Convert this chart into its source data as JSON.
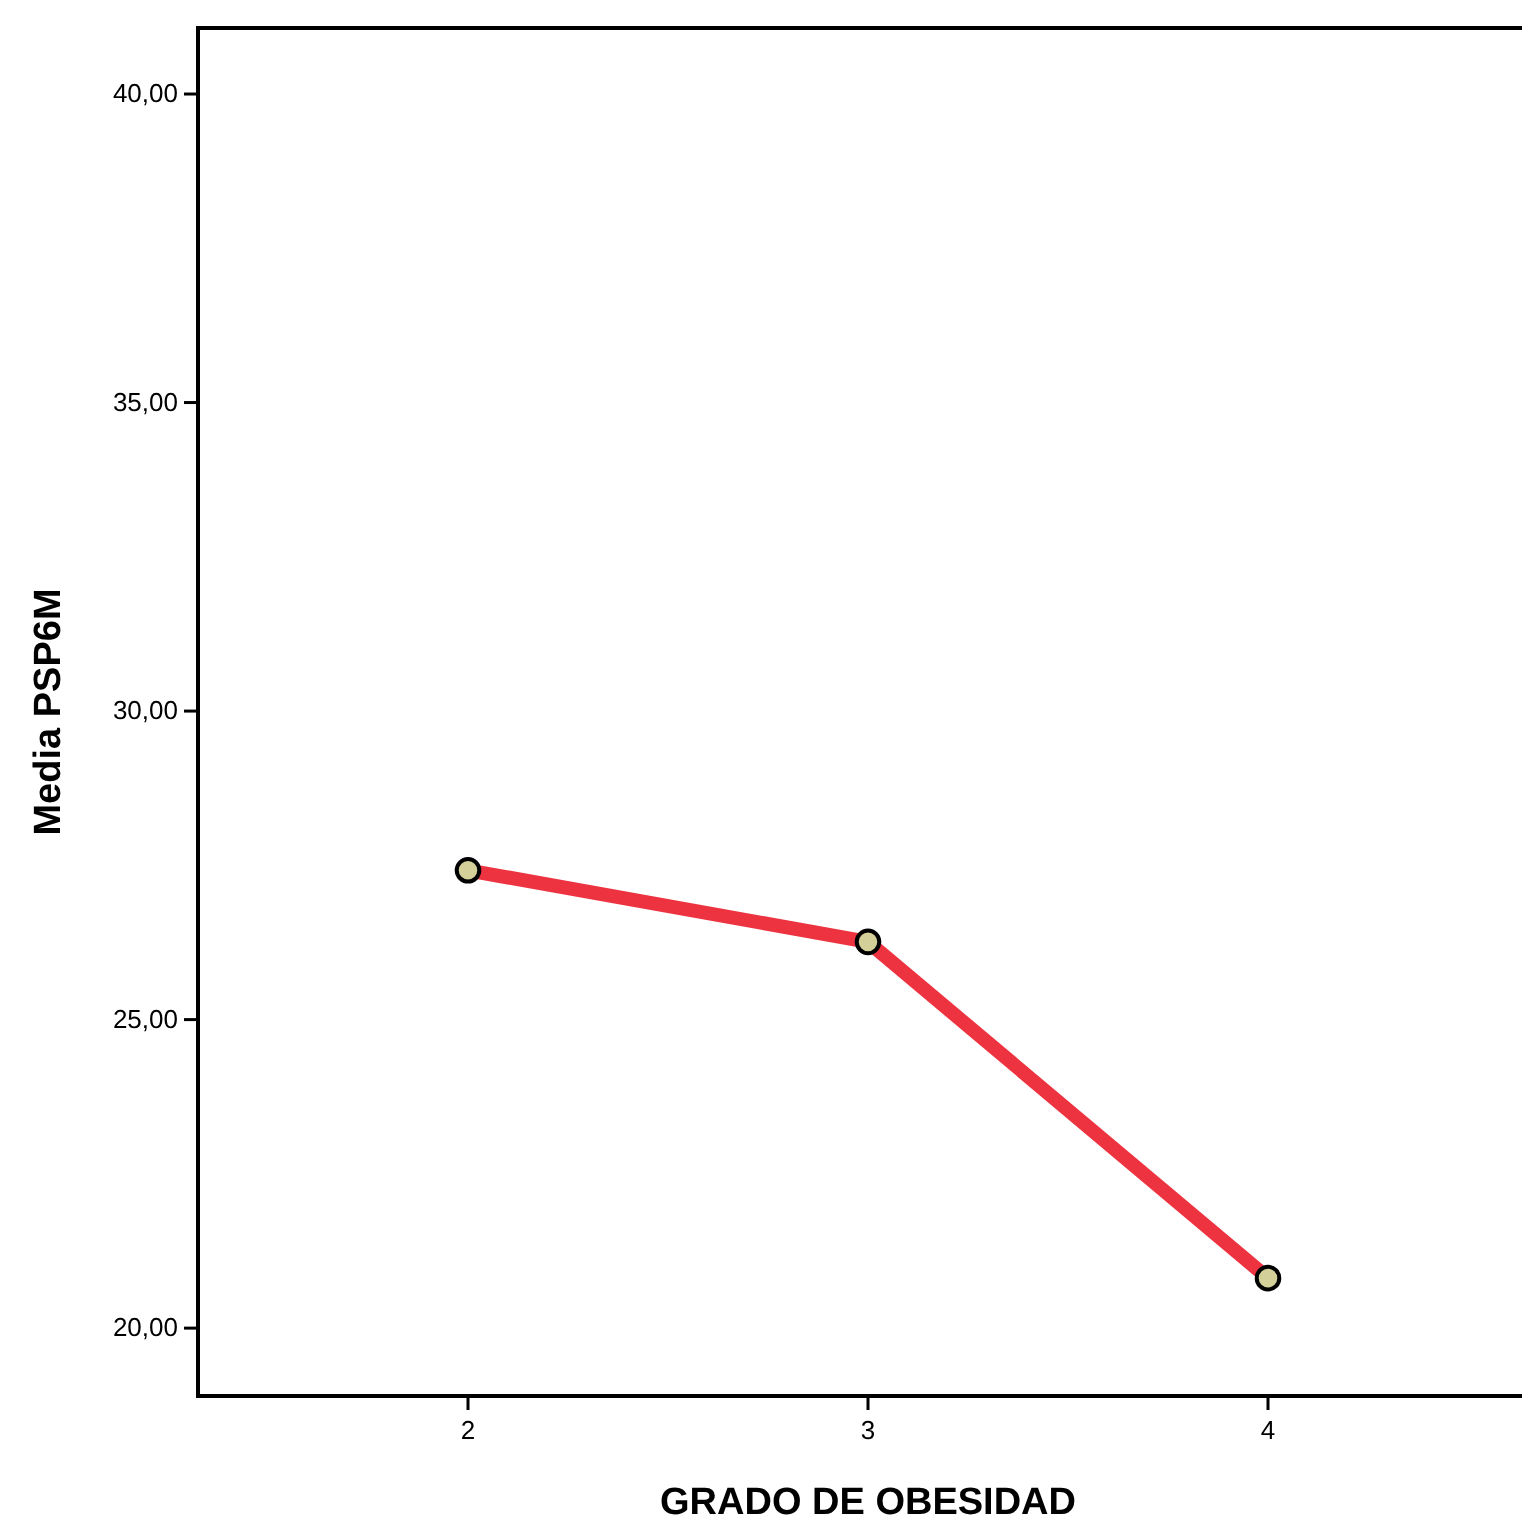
{
  "chart_data": {
    "type": "line",
    "xlabel": "GRADO DE OBESIDAD",
    "ylabel": "Media PSP6M",
    "categories": [
      "2",
      "3",
      "4"
    ],
    "series": [
      {
        "color": "#ee3340",
        "values": [
          27.42,
          26.26,
          20.81
        ]
      }
    ],
    "marker": "circle",
    "line_style": "solid",
    "ylim": [
      18.9,
      41.07
    ],
    "yticks": [
      {
        "value": 20,
        "label": "20,00"
      },
      {
        "value": 25,
        "label": "25,00"
      },
      {
        "value": 30,
        "label": "30,00"
      },
      {
        "value": 35,
        "label": "35,00"
      },
      {
        "value": 40,
        "label": "40,00"
      }
    ]
  }
}
